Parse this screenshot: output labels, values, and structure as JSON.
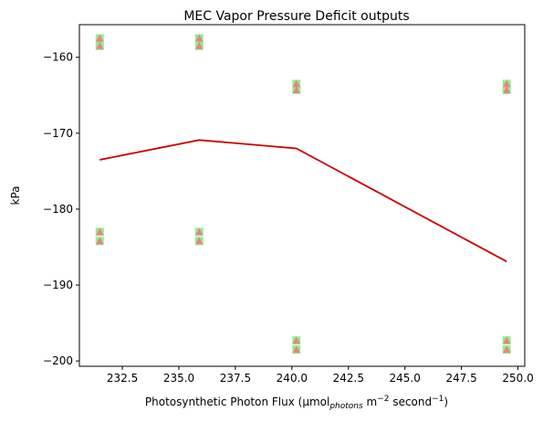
{
  "chart_data": {
    "type": "scatter",
    "title": "MEC Vapor Pressure Deficit outputs",
    "xlabel_parts": {
      "main": "Photosynthetic Photon Flux (µmol",
      "sub": "photons",
      "mid": " m",
      "sup1": "−2",
      "mid2": " second",
      "sup2": "−1",
      "end": ")"
    },
    "ylabel": "kPa",
    "xlim": [
      230.6,
      250.3
    ],
    "ylim": [
      -200.7,
      -155.7
    ],
    "xticks": [
      232.5,
      235.0,
      237.5,
      240.0,
      242.5,
      245.0,
      247.5,
      250.0
    ],
    "xtick_labels": [
      "232.5",
      "235.0",
      "237.5",
      "240.0",
      "242.5",
      "245.0",
      "247.5",
      "250.0"
    ],
    "yticks": [
      -160,
      -170,
      -180,
      -190,
      -200
    ],
    "ytick_labels": [
      "−160",
      "−170",
      "−180",
      "−190",
      "−200"
    ],
    "grid": false,
    "colors": {
      "scatter_square": "#90ee90",
      "scatter_triangle": "#f08080",
      "line": "#cc0000"
    },
    "x": [
      231.5,
      235.9,
      240.2,
      249.5
    ],
    "series": [
      {
        "marker": "square",
        "points": [
          [
            231.5,
            -157.5
          ],
          [
            231.5,
            -158.5
          ],
          [
            231.5,
            -183.0
          ],
          [
            231.5,
            -184.2
          ],
          [
            235.9,
            -157.5
          ],
          [
            235.9,
            -158.5
          ],
          [
            235.9,
            -183.0
          ],
          [
            235.9,
            -184.2
          ],
          [
            240.2,
            -163.5
          ],
          [
            240.2,
            -164.3
          ],
          [
            240.2,
            -197.3
          ],
          [
            240.2,
            -198.5
          ],
          [
            249.5,
            -163.5
          ],
          [
            249.5,
            -164.3
          ],
          [
            249.5,
            -197.3
          ],
          [
            249.5,
            -198.5
          ]
        ]
      },
      {
        "marker": "triangle",
        "points": [
          [
            231.5,
            -157.5
          ],
          [
            231.5,
            -158.5
          ],
          [
            231.5,
            -183.0
          ],
          [
            231.5,
            -184.2
          ],
          [
            235.9,
            -157.5
          ],
          [
            235.9,
            -158.5
          ],
          [
            235.9,
            -183.0
          ],
          [
            235.9,
            -184.2
          ],
          [
            240.2,
            -163.5
          ],
          [
            240.2,
            -164.3
          ],
          [
            240.2,
            -197.3
          ],
          [
            240.2,
            -198.5
          ],
          [
            249.5,
            -163.5
          ],
          [
            249.5,
            -164.3
          ],
          [
            249.5,
            -197.3
          ],
          [
            249.5,
            -198.5
          ]
        ]
      },
      {
        "marker": "line",
        "points": [
          [
            231.5,
            -173.5
          ],
          [
            235.9,
            -170.9
          ],
          [
            240.2,
            -172.0
          ],
          [
            249.5,
            -186.9
          ]
        ]
      }
    ]
  }
}
